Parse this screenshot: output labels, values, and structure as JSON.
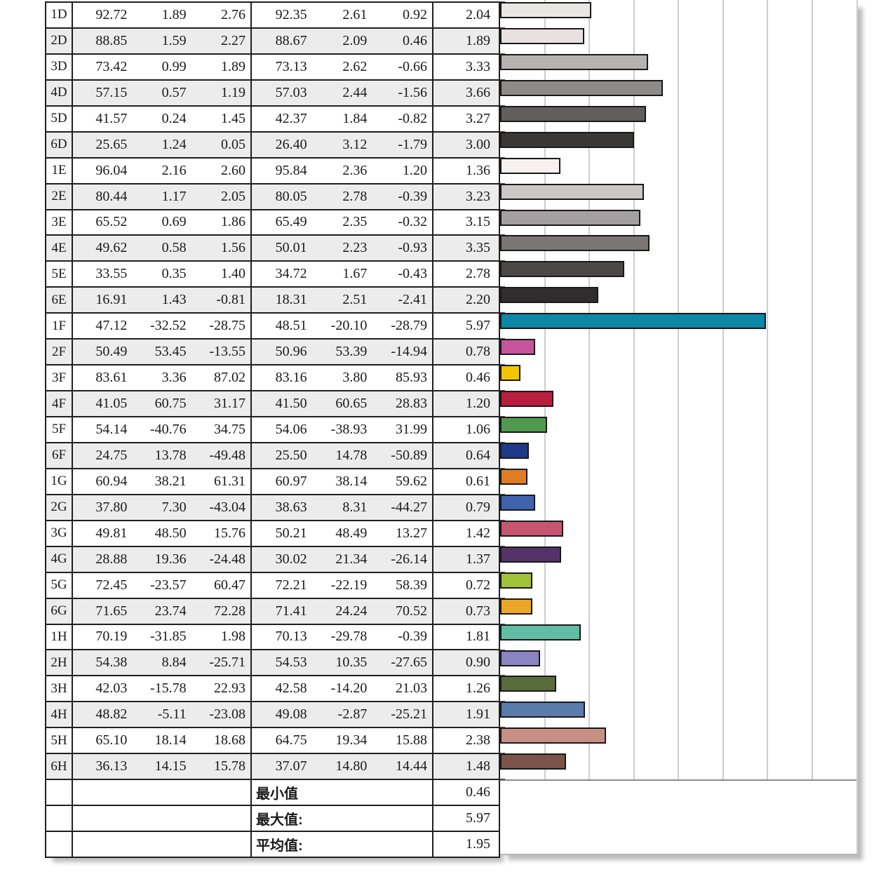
{
  "table": {
    "rows": [
      {
        "label": "1D",
        "ref": [
          "92.72",
          "1.89",
          "2.76"
        ],
        "meas": [
          "92.35",
          "2.61",
          "0.92"
        ],
        "de": "2.04",
        "color": "#eae6e4"
      },
      {
        "label": "2D",
        "ref": [
          "88.85",
          "1.59",
          "2.27"
        ],
        "meas": [
          "88.67",
          "2.09",
          "0.46"
        ],
        "de": "1.89",
        "color": "#e7e2e0"
      },
      {
        "label": "3D",
        "ref": [
          "73.42",
          "0.99",
          "1.89"
        ],
        "meas": [
          "73.13",
          "2.62",
          "-0.66"
        ],
        "de": "3.33",
        "color": "#b6b2b1"
      },
      {
        "label": "4D",
        "ref": [
          "57.15",
          "0.57",
          "1.19"
        ],
        "meas": [
          "57.03",
          "2.44",
          "-1.56"
        ],
        "de": "3.66",
        "color": "#8d8a8a"
      },
      {
        "label": "5D",
        "ref": [
          "41.57",
          "0.24",
          "1.45"
        ],
        "meas": [
          "42.37",
          "1.84",
          "-0.82"
        ],
        "de": "3.27",
        "color": "#615e5e"
      },
      {
        "label": "6D",
        "ref": [
          "25.65",
          "1.24",
          "0.05"
        ],
        "meas": [
          "26.40",
          "3.12",
          "-1.79"
        ],
        "de": "3.00",
        "color": "#3a3737"
      },
      {
        "label": "1E",
        "ref": [
          "96.04",
          "2.16",
          "2.60"
        ],
        "meas": [
          "95.84",
          "2.36",
          "1.20"
        ],
        "de": "1.36",
        "color": "#f6f0ee"
      },
      {
        "label": "2E",
        "ref": [
          "80.44",
          "1.17",
          "2.05"
        ],
        "meas": [
          "80.05",
          "2.78",
          "-0.39"
        ],
        "de": "3.23",
        "color": "#cbc7c6"
      },
      {
        "label": "3E",
        "ref": [
          "65.52",
          "0.69",
          "1.86"
        ],
        "meas": [
          "65.49",
          "2.35",
          "-0.32"
        ],
        "de": "3.15",
        "color": "#a49fa0"
      },
      {
        "label": "4E",
        "ref": [
          "49.62",
          "0.58",
          "1.56"
        ],
        "meas": [
          "50.01",
          "2.23",
          "-0.93"
        ],
        "de": "3.35",
        "color": "#7a7676"
      },
      {
        "label": "5E",
        "ref": [
          "33.55",
          "0.35",
          "1.40"
        ],
        "meas": [
          "34.72",
          "1.67",
          "-0.43"
        ],
        "de": "2.78",
        "color": "#4c4848"
      },
      {
        "label": "6E",
        "ref": [
          "16.91",
          "1.43",
          "-0.81"
        ],
        "meas": [
          "18.31",
          "2.51",
          "-2.41"
        ],
        "de": "2.20",
        "color": "#312d2f"
      },
      {
        "label": "1F",
        "ref": [
          "47.12",
          "-32.52",
          "-28.75"
        ],
        "meas": [
          "48.51",
          "-20.10",
          "-28.79"
        ],
        "de": "5.97",
        "color": "#0d87a7"
      },
      {
        "label": "2F",
        "ref": [
          "50.49",
          "53.45",
          "-13.55"
        ],
        "meas": [
          "50.96",
          "53.39",
          "-14.94"
        ],
        "de": "0.78",
        "color": "#c6559e"
      },
      {
        "label": "3F",
        "ref": [
          "83.61",
          "3.36",
          "87.02"
        ],
        "meas": [
          "83.16",
          "3.80",
          "85.93"
        ],
        "de": "0.46",
        "color": "#f1c500"
      },
      {
        "label": "4F",
        "ref": [
          "41.05",
          "60.75",
          "31.17"
        ],
        "meas": [
          "41.50",
          "60.65",
          "28.83"
        ],
        "de": "1.20",
        "color": "#b81f3e"
      },
      {
        "label": "5F",
        "ref": [
          "54.14",
          "-40.76",
          "34.75"
        ],
        "meas": [
          "54.06",
          "-38.93",
          "31.99"
        ],
        "de": "1.06",
        "color": "#4f9a4e"
      },
      {
        "label": "6F",
        "ref": [
          "24.75",
          "13.78",
          "-49.48"
        ],
        "meas": [
          "25.50",
          "14.78",
          "-50.89"
        ],
        "de": "0.64",
        "color": "#1f3a87"
      },
      {
        "label": "1G",
        "ref": [
          "60.94",
          "38.21",
          "61.31"
        ],
        "meas": [
          "60.97",
          "38.14",
          "59.62"
        ],
        "de": "0.61",
        "color": "#e07c22"
      },
      {
        "label": "2G",
        "ref": [
          "37.80",
          "7.30",
          "-43.04"
        ],
        "meas": [
          "38.63",
          "8.31",
          "-44.27"
        ],
        "de": "0.79",
        "color": "#4062ae"
      },
      {
        "label": "3G",
        "ref": [
          "49.81",
          "48.50",
          "15.76"
        ],
        "meas": [
          "50.21",
          "48.49",
          "13.27"
        ],
        "de": "1.42",
        "color": "#c65570"
      },
      {
        "label": "4G",
        "ref": [
          "28.88",
          "19.36",
          "-24.48"
        ],
        "meas": [
          "30.02",
          "21.34",
          "-26.14"
        ],
        "de": "1.37",
        "color": "#563269"
      },
      {
        "label": "5G",
        "ref": [
          "72.45",
          "-23.57",
          "60.47"
        ],
        "meas": [
          "72.21",
          "-22.19",
          "58.39"
        ],
        "de": "0.72",
        "color": "#a2c03a"
      },
      {
        "label": "6G",
        "ref": [
          "71.65",
          "23.74",
          "72.28"
        ],
        "meas": [
          "71.41",
          "24.24",
          "70.52"
        ],
        "de": "0.73",
        "color": "#eda728"
      },
      {
        "label": "1H",
        "ref": [
          "70.19",
          "-31.85",
          "1.98"
        ],
        "meas": [
          "70.13",
          "-29.78",
          "-0.39"
        ],
        "de": "1.81",
        "color": "#5fbda3"
      },
      {
        "label": "2H",
        "ref": [
          "54.38",
          "8.84",
          "-25.71"
        ],
        "meas": [
          "54.53",
          "10.35",
          "-27.65"
        ],
        "de": "0.90",
        "color": "#8a84c5"
      },
      {
        "label": "3H",
        "ref": [
          "42.03",
          "-15.78",
          "22.93"
        ],
        "meas": [
          "42.58",
          "-14.20",
          "21.03"
        ],
        "de": "1.26",
        "color": "#596d3c"
      },
      {
        "label": "4H",
        "ref": [
          "48.82",
          "-5.11",
          "-23.08"
        ],
        "meas": [
          "49.08",
          "-2.87",
          "-25.21"
        ],
        "de": "1.91",
        "color": "#5a7cab"
      },
      {
        "label": "5H",
        "ref": [
          "65.10",
          "18.14",
          "18.68"
        ],
        "meas": [
          "64.75",
          "19.34",
          "15.88"
        ],
        "de": "2.38",
        "color": "#c78f83"
      },
      {
        "label": "6H",
        "ref": [
          "36.13",
          "14.15",
          "15.78"
        ],
        "meas": [
          "37.07",
          "14.80",
          "14.44"
        ],
        "de": "1.48",
        "color": "#7c5348"
      }
    ],
    "summary": [
      {
        "label": "最小值",
        "value": "0.46"
      },
      {
        "label": "最大值:",
        "value": "5.97"
      },
      {
        "label": "平均值:",
        "value": "1.95"
      }
    ]
  },
  "chart_data": {
    "type": "bar",
    "orientation": "horizontal",
    "title": "",
    "xlabel": "",
    "ylabel": "",
    "categories": [
      "1D",
      "2D",
      "3D",
      "4D",
      "5D",
      "6D",
      "1E",
      "2E",
      "3E",
      "4E",
      "5E",
      "6E",
      "1F",
      "2F",
      "3F",
      "4F",
      "5F",
      "6F",
      "1G",
      "2G",
      "3G",
      "4G",
      "5G",
      "6G",
      "1H",
      "2H",
      "3H",
      "4H",
      "5H",
      "6H"
    ],
    "values": [
      2.04,
      1.89,
      3.33,
      3.66,
      3.27,
      3.0,
      1.36,
      3.23,
      3.15,
      3.35,
      2.78,
      2.2,
      5.97,
      0.78,
      0.46,
      1.2,
      1.06,
      0.64,
      0.61,
      0.79,
      1.42,
      1.37,
      0.72,
      0.73,
      1.81,
      0.9,
      1.26,
      1.91,
      2.38,
      1.48
    ],
    "bar_colors": [
      "#eae6e4",
      "#e7e2e0",
      "#b6b2b1",
      "#8d8a8a",
      "#615e5e",
      "#3a3737",
      "#f6f0ee",
      "#cbc7c6",
      "#a49fa0",
      "#7a7676",
      "#4c4848",
      "#312d2f",
      "#0d87a7",
      "#c6559e",
      "#f1c500",
      "#b81f3e",
      "#4f9a4e",
      "#1f3a87",
      "#e07c22",
      "#4062ae",
      "#c65570",
      "#563269",
      "#a2c03a",
      "#eda728",
      "#5fbda3",
      "#8a84c5",
      "#596d3c",
      "#5a7cab",
      "#c78f83",
      "#7c5348"
    ],
    "xlim": [
      0,
      8
    ],
    "gridline_interval": 1,
    "grid": true,
    "legend_position": "none",
    "min": 0.46,
    "max": 5.97,
    "mean": 1.95
  },
  "colors": {
    "table_border": "#1f1f1f",
    "row_stripe": "#ececec",
    "gridline": "#cdcdcd",
    "bar_outline": "#191919",
    "plot_baseline": "#8c8c8c",
    "shadow": "#bdbdbd"
  }
}
